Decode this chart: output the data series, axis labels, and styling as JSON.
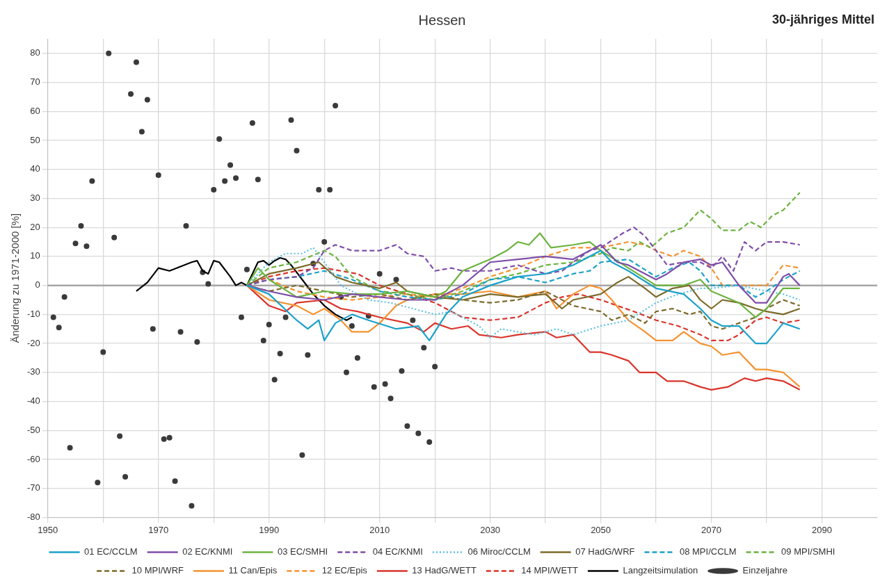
{
  "chart_data": {
    "type": "line",
    "title": "Hessen",
    "subtitle": "30-jähriges Mittel",
    "ylabel": "Änderung zu 1971-2000 [%]",
    "xlim": [
      1950,
      2100
    ],
    "ylim": [
      -80,
      85
    ],
    "xticks": [
      1950,
      {
        "value": 1960,
        "label": null
      },
      1970,
      {
        "value": 1980,
        "label": null
      },
      1990,
      {
        "value": 2000,
        "label": null
      },
      2010,
      {
        "value": 2020,
        "label": null
      },
      2030,
      {
        "value": 2040,
        "label": null
      },
      2050,
      {
        "value": 2060,
        "label": null
      },
      2070,
      {
        "value": 2080,
        "label": null
      },
      2090
    ],
    "yticks": [
      -80,
      -70,
      -60,
      -50,
      -40,
      -30,
      -20,
      -10,
      0,
      10,
      20,
      30,
      40,
      50,
      60,
      70,
      80
    ],
    "grid": true,
    "legend": "bottom",
    "marker": "none",
    "ref_lines": [
      {
        "axis": "y",
        "value": 0,
        "color": "#a6a6a6"
      }
    ],
    "series": [
      {
        "name": "01 EC/CCLM",
        "color": "#1ba1c8",
        "line_style": "solid",
        "x": [
          1986,
          1990,
          1995,
          1997,
          1999,
          2000,
          2002,
          2005,
          2008,
          2013,
          2017,
          2019,
          2022,
          2025,
          2030,
          2035,
          2040,
          2045,
          2050,
          2052,
          2055,
          2060,
          2065,
          2068,
          2070,
          2072,
          2075,
          2078,
          2080,
          2083,
          2086
        ],
        "values": [
          0,
          -3,
          -12,
          -15,
          -12,
          -19,
          -13,
          -10,
          -12,
          -15,
          -14,
          -19,
          -10,
          -4,
          0,
          3,
          4,
          7,
          12,
          8,
          5,
          -1,
          -3,
          -8,
          -12,
          -14,
          -14,
          -20,
          -20,
          -13,
          -15
        ]
      },
      {
        "name": "02 EC/KNMI",
        "color": "#7f4ea8",
        "line_style": "solid",
        "x": [
          1986,
          1990,
          1995,
          2000,
          2005,
          2010,
          2015,
          2020,
          2025,
          2030,
          2035,
          2040,
          2045,
          2050,
          2053,
          2055,
          2060,
          2062,
          2065,
          2068,
          2070,
          2072,
          2075,
          2078,
          2080,
          2083,
          2084,
          2086
        ],
        "values": [
          0,
          -2,
          -4,
          -5,
          -3,
          -4,
          -5,
          -5,
          0,
          8,
          9,
          10,
          9,
          14,
          8,
          7,
          2,
          4,
          8,
          9,
          7,
          8,
          0,
          -6,
          -6,
          3,
          4,
          0
        ]
      },
      {
        "name": "03 EC/SMHI",
        "color": "#6cb33f",
        "line_style": "solid",
        "x": [
          1986,
          1988,
          1990,
          1995,
          2000,
          2005,
          2010,
          2015,
          2020,
          2022,
          2025,
          2030,
          2033,
          2035,
          2037,
          2039,
          2041,
          2045,
          2048,
          2050,
          2055,
          2060,
          2065,
          2068,
          2070,
          2075,
          2078,
          2080,
          2083,
          2086
        ],
        "values": [
          0,
          6,
          2,
          -4,
          -2,
          -3,
          -3,
          -2,
          -4,
          -2,
          5,
          9,
          12,
          15,
          14,
          18,
          13,
          14,
          15,
          12,
          6,
          0,
          0,
          2,
          -2,
          -6,
          -11,
          -8,
          -1,
          -1
        ]
      },
      {
        "name": "04 EC/KNMI",
        "color": "#7f4ea8",
        "line_style": "dashed",
        "x": [
          1986,
          1990,
          1995,
          1998,
          2000,
          2002,
          2005,
          2010,
          2013,
          2015,
          2018,
          2020,
          2023,
          2025,
          2030,
          2035,
          2040,
          2043,
          2045,
          2048,
          2050,
          2054,
          2056,
          2058,
          2060,
          2062,
          2065,
          2068,
          2070,
          2072,
          2074,
          2076,
          2078,
          2080,
          2083,
          2086
        ],
        "values": [
          0,
          2,
          3,
          6,
          12,
          14,
          12,
          12,
          14,
          11,
          10,
          5,
          6,
          5,
          5,
          7,
          4,
          5,
          8,
          12,
          13,
          18,
          20,
          17,
          12,
          7,
          8,
          8,
          6,
          10,
          5,
          15,
          12,
          15,
          15,
          14
        ]
      },
      {
        "name": "06 Miroc/CCLM",
        "color": "#5bc0e0",
        "line_style": "dotted",
        "x": [
          1986,
          1990,
          1993,
          1996,
          1998,
          2000,
          2003,
          2008,
          2012,
          2016,
          2020,
          2023,
          2026,
          2028,
          2030,
          2032,
          2035,
          2038,
          2042,
          2045,
          2050,
          2055,
          2060,
          2064,
          2068,
          2070,
          2075,
          2080,
          2083,
          2086
        ],
        "values": [
          0,
          8,
          11,
          11,
          13,
          8,
          0,
          -5,
          -6,
          -8,
          -10,
          -9,
          -12,
          -14,
          -18,
          -15,
          -16,
          -17,
          -15,
          -17,
          -14,
          -12,
          -6,
          -3,
          -1,
          -1,
          0,
          -2,
          -3,
          -5
        ]
      },
      {
        "name": "07 HadG/WRF",
        "color": "#7c6a2a",
        "line_style": "solid",
        "x": [
          1986,
          1990,
          1995,
          1999,
          2002,
          2005,
          2010,
          2013,
          2015,
          2020,
          2025,
          2030,
          2035,
          2040,
          2043,
          2045,
          2050,
          2053,
          2055,
          2058,
          2060,
          2063,
          2066,
          2068,
          2070,
          2072,
          2075,
          2078,
          2080,
          2083,
          2086
        ],
        "values": [
          0,
          4,
          6,
          8,
          3,
          1,
          -1,
          1,
          -2,
          -4,
          -5,
          -3,
          -4,
          -3,
          -8,
          -5,
          -3,
          1,
          3,
          -1,
          -4,
          -1,
          0,
          -5,
          -8,
          -5,
          -6,
          -8,
          -9,
          -10,
          -8
        ]
      },
      {
        "name": "08 MPI/CCLM",
        "color": "#1ba1c8",
        "line_style": "dashed",
        "x": [
          1986,
          1990,
          1995,
          2000,
          2005,
          2010,
          2015,
          2020,
          2025,
          2030,
          2035,
          2040,
          2045,
          2048,
          2050,
          2055,
          2060,
          2063,
          2066,
          2068,
          2070,
          2075,
          2078,
          2080,
          2083,
          2086
        ],
        "values": [
          0,
          2,
          3,
          5,
          2,
          -2,
          -4,
          -5,
          -3,
          2,
          3,
          1,
          4,
          5,
          8,
          9,
          3,
          6,
          8,
          5,
          0,
          0,
          -4,
          -2,
          2,
          5
        ]
      },
      {
        "name": "09 MPI/SMHI",
        "color": "#6cb33f",
        "line_style": "dashed",
        "x": [
          1986,
          1990,
          1995,
          2000,
          2002,
          2005,
          2010,
          2015,
          2020,
          2025,
          2030,
          2035,
          2040,
          2045,
          2050,
          2052,
          2055,
          2057,
          2059,
          2062,
          2065,
          2068,
          2070,
          2072,
          2075,
          2077,
          2079,
          2081,
          2083,
          2086
        ],
        "values": [
          0,
          6,
          8,
          12,
          10,
          3,
          -2,
          -3,
          -5,
          -2,
          2,
          4,
          7,
          8,
          11,
          13,
          12,
          15,
          13,
          18,
          20,
          26,
          23,
          19,
          19,
          22,
          20,
          24,
          26,
          32
        ]
      },
      {
        "name": "10 MPI/WRF",
        "color": "#7c6a2a",
        "line_style": "dashed",
        "x": [
          1986,
          1990,
          1995,
          2000,
          2005,
          2010,
          2015,
          2020,
          2025,
          2030,
          2035,
          2040,
          2045,
          2050,
          2052,
          2055,
          2058,
          2060,
          2063,
          2066,
          2068,
          2070,
          2072,
          2075,
          2078,
          2080,
          2083,
          2086
        ],
        "values": [
          0,
          -2,
          0,
          -2,
          -4,
          -3,
          -5,
          -3,
          -5,
          -6,
          -5,
          -2,
          -7,
          -9,
          -12,
          -10,
          -13,
          -9,
          -8,
          -10,
          -9,
          -14,
          -15,
          -13,
          -11,
          -8,
          -5,
          -7
        ]
      },
      {
        "name": "11 Can/Epis",
        "color": "#f5922f",
        "line_style": "solid",
        "x": [
          1986,
          1990,
          1995,
          1998,
          2000,
          2003,
          2005,
          2008,
          2010,
          2013,
          2015,
          2020,
          2025,
          2030,
          2035,
          2040,
          2042,
          2045,
          2048,
          2050,
          2052,
          2055,
          2058,
          2060,
          2063,
          2065,
          2068,
          2070,
          2072,
          2075,
          2078,
          2080,
          2083,
          2086
        ],
        "values": [
          0,
          -5,
          -7,
          -10,
          -8,
          -12,
          -16,
          -16,
          -13,
          -7,
          -5,
          -3,
          -3,
          -2,
          -4,
          -2,
          -8,
          -3,
          0,
          -1,
          -5,
          -12,
          -16,
          -19,
          -19,
          -16,
          -20,
          -21,
          -24,
          -23,
          -29,
          -29,
          -30,
          -35
        ]
      },
      {
        "name": "12 EC/Epis",
        "color": "#f5922f",
        "line_style": "dashed",
        "x": [
          1986,
          1990,
          1995,
          2000,
          2005,
          2010,
          2015,
          2020,
          2025,
          2030,
          2035,
          2040,
          2045,
          2050,
          2055,
          2058,
          2060,
          2063,
          2065,
          2068,
          2070,
          2072,
          2075,
          2078,
          2080,
          2083,
          2086
        ],
        "values": [
          0,
          2,
          -2,
          -4,
          -5,
          -4,
          -3,
          -4,
          -1,
          3,
          6,
          10,
          13,
          13,
          15,
          14,
          12,
          10,
          12,
          10,
          6,
          0,
          0,
          0,
          0,
          7,
          6
        ]
      },
      {
        "name": "13 HadG/WETT",
        "color": "#d9342b",
        "line_style": "solid",
        "x": [
          1986,
          1990,
          1993,
          1995,
          2000,
          2003,
          2006,
          2010,
          2015,
          2018,
          2020,
          2023,
          2026,
          2028,
          2032,
          2035,
          2040,
          2042,
          2045,
          2048,
          2050,
          2052,
          2055,
          2057,
          2060,
          2062,
          2065,
          2068,
          2070,
          2073,
          2076,
          2078,
          2080,
          2083,
          2086
        ],
        "values": [
          0,
          -7,
          -9,
          -6,
          -5,
          -8,
          -9,
          -11,
          -13,
          -16,
          -13,
          -15,
          -14,
          -17,
          -18,
          -17,
          -16,
          -18,
          -17,
          -23,
          -23,
          -24,
          -26,
          -30,
          -30,
          -33,
          -33,
          -35,
          -36,
          -35,
          -32,
          -33,
          -32,
          -33,
          -36
        ]
      },
      {
        "name": "14 MPI/WETT",
        "color": "#d9342b",
        "line_style": "dashed",
        "x": [
          1986,
          1990,
          1995,
          2000,
          2003,
          2006,
          2010,
          2015,
          2020,
          2023,
          2025,
          2030,
          2035,
          2040,
          2043,
          2046,
          2050,
          2053,
          2056,
          2060,
          2064,
          2068,
          2070,
          2073,
          2075,
          2078,
          2080,
          2083,
          2086
        ],
        "values": [
          0,
          3,
          5,
          6,
          5,
          4,
          0,
          -3,
          -6,
          -9,
          -11,
          -12,
          -11,
          -6,
          -4,
          -3,
          -5,
          -7,
          -9,
          -12,
          -14,
          -17,
          -19,
          -19,
          -17,
          -12,
          -11,
          -13,
          -12
        ]
      },
      {
        "name": "Langzeitsimulation",
        "color": "#000000",
        "line_style": "solid",
        "x": [
          1966,
          1968,
          1970,
          1972,
          1974,
          1976,
          1977,
          1978,
          1979,
          1980,
          1981,
          1983,
          1984,
          1985,
          1986,
          1988,
          1989,
          1990,
          1991,
          1992,
          1993,
          1994,
          1996,
          1998,
          2000,
          2002,
          2004,
          2005
        ],
        "values": [
          -2,
          1,
          6,
          5,
          6.5,
          8,
          8.5,
          5,
          4,
          8.5,
          8,
          3,
          0,
          1,
          0,
          8,
          8.5,
          7,
          8.5,
          9.5,
          9,
          7,
          2,
          -3,
          -7,
          -10,
          -12,
          -11
        ]
      },
      {
        "name": "Einzeljahre",
        "type": "scatter",
        "marker": "circle",
        "color": "#3a3a3a",
        "x": [
          1951,
          1952,
          1953,
          1954,
          1955,
          1956,
          1957,
          1958,
          1959,
          1960,
          1961,
          1962,
          1963,
          1964,
          1965,
          1966,
          1967,
          1968,
          1969,
          1970,
          1971,
          1972,
          1973,
          1974,
          1975,
          1976,
          1977,
          1978,
          1979,
          1980,
          1981,
          1982,
          1983,
          1984,
          1985,
          1986,
          1987,
          1988,
          1989,
          1990,
          1991,
          1992,
          1993,
          1994,
          1995,
          1996,
          1997,
          1998,
          1999,
          2000,
          2001,
          2002,
          2003,
          2004,
          2005,
          2006,
          2008,
          2009,
          2010,
          2011,
          2012,
          2013,
          2014,
          2015,
          2016,
          2017,
          2018,
          2019,
          2020
        ],
        "values": [
          -11,
          -14.5,
          -4,
          -56,
          14.5,
          20.5,
          13.5,
          36,
          -68,
          -23,
          80,
          16.5,
          -52,
          -66,
          66,
          77,
          53,
          64,
          -15,
          38,
          -53,
          -52.5,
          -67.5,
          -16,
          20.5,
          -76,
          -19.5,
          4.5,
          0.5,
          33,
          50.5,
          36,
          41.5,
          37,
          -11,
          5.5,
          56,
          36.5,
          -19,
          -13.5,
          -32.5,
          -23.5,
          -11,
          57,
          46.5,
          -58.5,
          -24,
          7.5,
          33,
          15,
          33,
          62,
          -4,
          -30,
          -14,
          -25,
          -10.5,
          -35,
          4,
          -34,
          -39,
          2,
          -29.5,
          -48.5,
          -12,
          -51,
          -21.5,
          -54,
          -28
        ]
      }
    ]
  }
}
